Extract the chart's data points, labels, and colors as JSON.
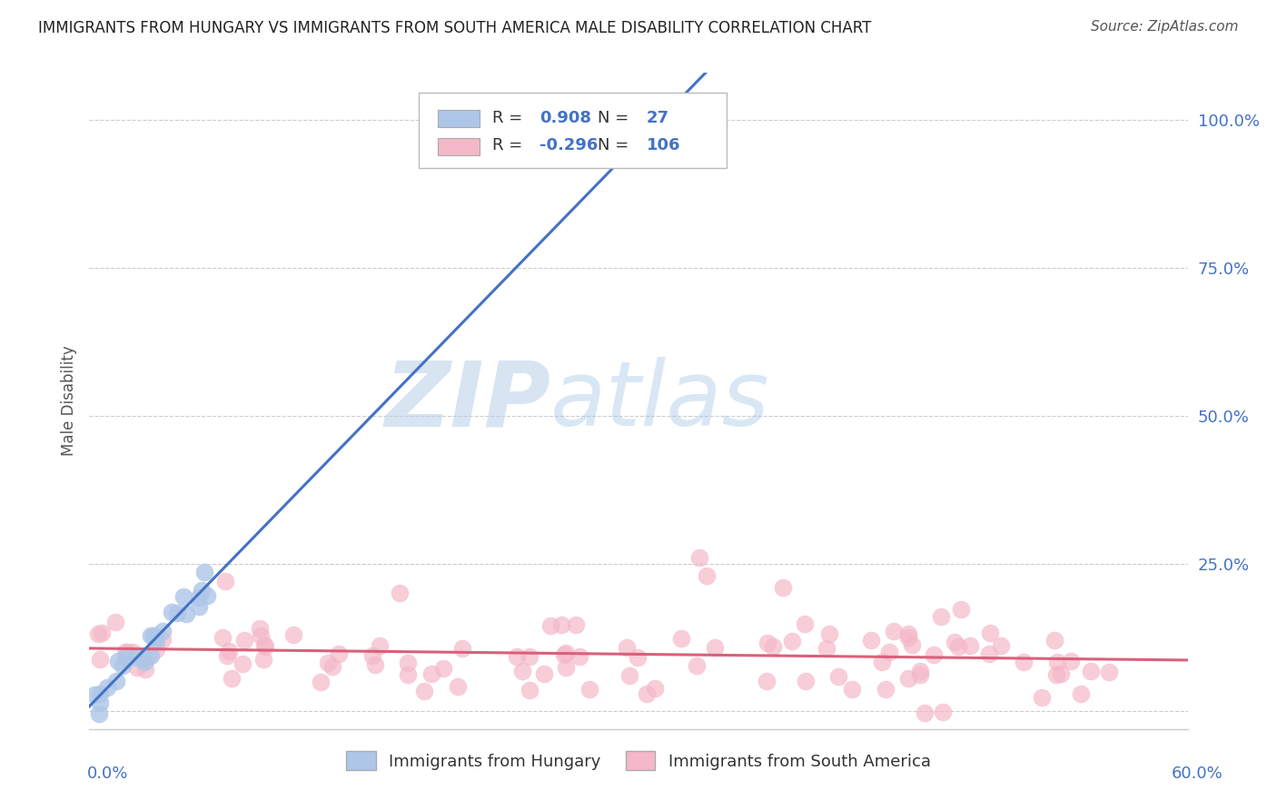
{
  "title": "IMMIGRANTS FROM HUNGARY VS IMMIGRANTS FROM SOUTH AMERICA MALE DISABILITY CORRELATION CHART",
  "source": "Source: ZipAtlas.com",
  "ylabel": "Male Disability",
  "xlim": [
    0.0,
    0.62
  ],
  "ylim": [
    -0.03,
    1.08
  ],
  "yticks": [
    0.0,
    0.25,
    0.5,
    0.75,
    1.0
  ],
  "ytick_labels": [
    "",
    "25.0%",
    "50.0%",
    "75.0%",
    "100.0%"
  ],
  "hungary_color": "#aec6e8",
  "hungary_line_color": "#4472c4",
  "south_america_color": "#f4b8c8",
  "south_america_line_color": "#d9607a",
  "hungary_R": 0.908,
  "hungary_N": 27,
  "south_america_R": -0.296,
  "south_america_N": 106,
  "watermark_zip": "ZIP",
  "watermark_atlas": "atlas",
  "title_fontsize": 12,
  "source_fontsize": 11,
  "tick_fontsize": 13,
  "legend_fontsize": 13
}
